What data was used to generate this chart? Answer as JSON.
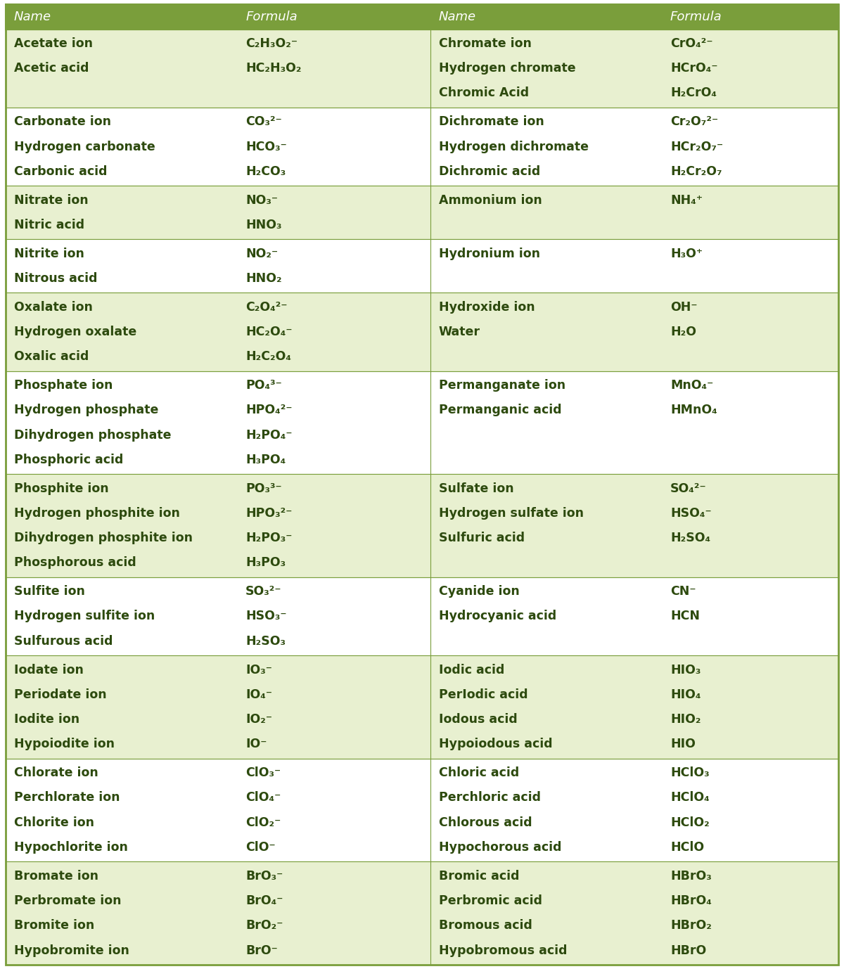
{
  "header_bg": "#7a9e3b",
  "header_text": "#ffffff",
  "row_bg_light": "#e8f0d0",
  "row_bg_white": "#ffffff",
  "text_color": "#2d4a0e",
  "border_color": "#7a9e3b",
  "groups": [
    {
      "left": [
        [
          "Acetate ion",
          "C₂H₃O₂⁻"
        ],
        [
          "Acetic acid",
          "HC₂H₃O₂"
        ]
      ],
      "right": [
        [
          "Chromate ion",
          "CrO₄²⁻"
        ],
        [
          "Hydrogen chromate",
          "HCrO₄⁻"
        ],
        [
          "Chromic Acid",
          "H₂CrO₄"
        ]
      ],
      "shade": "light"
    },
    {
      "left": [
        [
          "Carbonate ion",
          "CO₃²⁻"
        ],
        [
          "Hydrogen carbonate",
          "HCO₃⁻"
        ],
        [
          "Carbonic acid",
          "H₂CO₃"
        ]
      ],
      "right": [
        [
          "Dichromate ion",
          "Cr₂O₇²⁻"
        ],
        [
          "Hydrogen dichromate",
          "HCr₂O₇⁻"
        ],
        [
          "Dichromic acid",
          "H₂Cr₂O₇"
        ]
      ],
      "shade": "white"
    },
    {
      "left": [
        [
          "Nitrate ion",
          "NO₃⁻"
        ],
        [
          "Nitric acid",
          "HNO₃"
        ]
      ],
      "right": [
        [
          "Ammonium ion",
          "NH₄⁺"
        ]
      ],
      "shade": "light"
    },
    {
      "left": [
        [
          "Nitrite ion",
          "NO₂⁻"
        ],
        [
          "Nitrous acid",
          "HNO₂"
        ]
      ],
      "right": [
        [
          "Hydronium ion",
          "H₃O⁺"
        ]
      ],
      "shade": "white"
    },
    {
      "left": [
        [
          "Oxalate ion",
          "C₂O₄²⁻"
        ],
        [
          "Hydrogen oxalate",
          "HC₂O₄⁻"
        ],
        [
          "Oxalic acid",
          "H₂C₂O₄"
        ]
      ],
      "right": [
        [
          "Hydroxide ion",
          "OH⁻"
        ],
        [
          "Water",
          "H₂O"
        ]
      ],
      "shade": "light"
    },
    {
      "left": [
        [
          "Phosphate ion",
          "PO₄³⁻"
        ],
        [
          "Hydrogen phosphate",
          "HPO₄²⁻"
        ],
        [
          "Dihydrogen phosphate",
          "H₂PO₄⁻"
        ],
        [
          "Phosphoric acid",
          "H₃PO₄"
        ]
      ],
      "right": [
        [
          "Permanganate ion",
          "MnO₄⁻"
        ],
        [
          "Permanganic acid",
          "HMnO₄"
        ]
      ],
      "shade": "white"
    },
    {
      "left": [
        [
          "Phosphite ion",
          "PO₃³⁻"
        ],
        [
          "Hydrogen phosphite ion",
          "HPO₃²⁻"
        ],
        [
          "Dihydrogen phosphite ion",
          "H₂PO₃⁻"
        ],
        [
          "Phosphorous acid",
          "H₃PO₃"
        ]
      ],
      "right": [
        [
          "Sulfate ion",
          "SO₄²⁻"
        ],
        [
          "Hydrogen sulfate ion",
          "HSO₄⁻"
        ],
        [
          "Sulfuric acid",
          "H₂SO₄"
        ]
      ],
      "shade": "light"
    },
    {
      "left": [
        [
          "Sulfite ion",
          "SO₃²⁻"
        ],
        [
          "Hydrogen sulfite ion",
          "HSO₃⁻"
        ],
        [
          "Sulfurous acid",
          "H₂SO₃"
        ]
      ],
      "right": [
        [
          "Cyanide ion",
          "CN⁻"
        ],
        [
          "Hydrocyanic acid",
          "HCN"
        ]
      ],
      "shade": "white"
    },
    {
      "left": [
        [
          "Iodate ion",
          "IO₃⁻"
        ],
        [
          "Periodate ion",
          "IO₄⁻"
        ],
        [
          "Iodite ion",
          "IO₂⁻"
        ],
        [
          "Hypoiodite ion",
          "IO⁻"
        ]
      ],
      "right": [
        [
          "Iodic acid",
          "HIO₃"
        ],
        [
          "PerIodic acid",
          "HIO₄"
        ],
        [
          "Iodous acid",
          "HIO₂"
        ],
        [
          "Hypoiodous acid",
          "HIO"
        ]
      ],
      "shade": "light"
    },
    {
      "left": [
        [
          "Chlorate ion",
          "ClO₃⁻"
        ],
        [
          "Perchlorate ion",
          "ClO₄⁻"
        ],
        [
          "Chlorite ion",
          "ClO₂⁻"
        ],
        [
          "Hypochlorite ion",
          "ClO⁻"
        ]
      ],
      "right": [
        [
          "Chloric acid",
          "HClO₃"
        ],
        [
          "Perchloric acid",
          "HClO₄"
        ],
        [
          "Chlorous acid",
          "HClO₂"
        ],
        [
          "Hypochorous acid",
          "HClO"
        ]
      ],
      "shade": "white"
    },
    {
      "left": [
        [
          "Bromate ion",
          "BrO₃⁻"
        ],
        [
          "Perbromate ion",
          "BrO₄⁻"
        ],
        [
          "Bromite ion",
          "BrO₂⁻"
        ],
        [
          "Hypobromite ion",
          "BrO⁻"
        ]
      ],
      "right": [
        [
          "Bromic acid",
          "HBrO₃"
        ],
        [
          "Perbromic acid",
          "HBrO₄"
        ],
        [
          "Bromous acid",
          "HBrO₂"
        ],
        [
          "Hypobromous acid",
          "HBrO"
        ]
      ],
      "shade": "light"
    }
  ]
}
